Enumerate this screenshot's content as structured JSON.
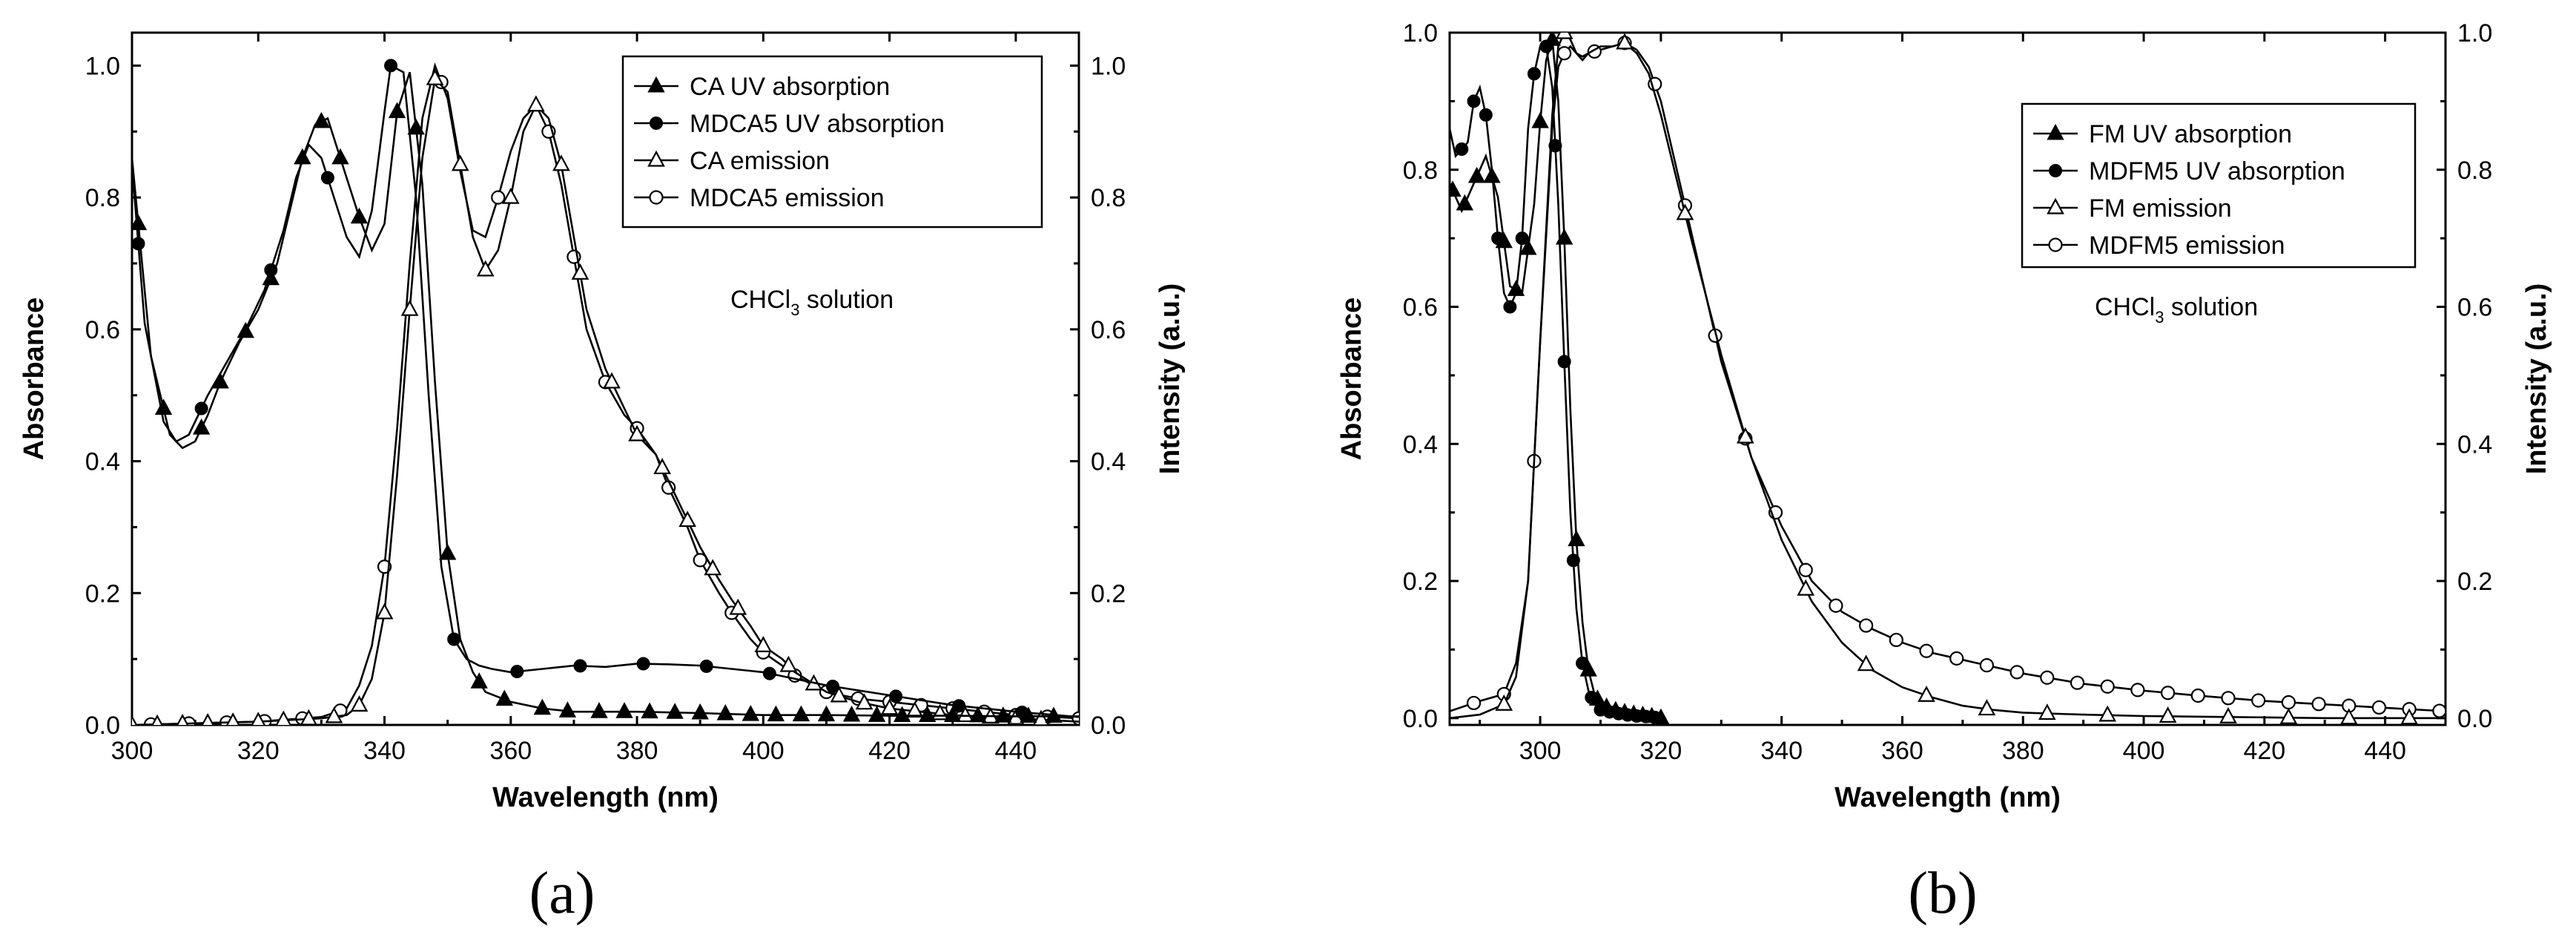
{
  "chart_data": [
    {
      "type": "line",
      "panel_label": "(a)",
      "xlabel": "Wavelength (nm)",
      "ylabel": "Absorbance",
      "y2label": "Intensity (a.u.)",
      "xlim": [
        300,
        450
      ],
      "ylim": [
        0,
        1.05
      ],
      "y2lim": [
        0,
        1.05
      ],
      "xticks": [
        300,
        320,
        340,
        360,
        380,
        400,
        420,
        440
      ],
      "yticks": [
        0.0,
        0.2,
        0.4,
        0.6,
        0.8,
        1.0
      ],
      "xtick_labels": [
        "300",
        "320",
        "340",
        "360",
        "380",
        "400",
        "420",
        "440"
      ],
      "ytick_labels": [
        "0.0",
        "0.2",
        "0.4",
        "0.6",
        "0.8",
        "1.0"
      ],
      "annotation": {
        "prefix": "CHCl",
        "subscript": "3",
        "suffix": " solution",
        "x": 385,
        "y": 0.65
      },
      "legend_position": "top-right",
      "series": [
        {
          "name": "CA UV absorption",
          "marker": "filled-triangle",
          "axis": "left",
          "x": [
            300,
            303,
            306,
            308,
            310,
            312,
            314,
            317,
            320,
            323,
            325,
            327,
            329,
            331,
            333,
            336,
            338,
            340,
            342,
            344,
            346,
            348,
            350,
            352,
            354,
            356,
            360,
            365,
            370,
            380,
            390,
            400,
            410,
            420,
            430,
            440,
            450
          ],
          "y": [
            0.86,
            0.56,
            0.44,
            0.42,
            0.43,
            0.47,
            0.52,
            0.58,
            0.63,
            0.7,
            0.78,
            0.86,
            0.91,
            0.92,
            0.86,
            0.77,
            0.72,
            0.76,
            0.93,
            0.99,
            0.82,
            0.52,
            0.26,
            0.13,
            0.08,
            0.05,
            0.035,
            0.025,
            0.02,
            0.02,
            0.018,
            0.015,
            0.015,
            0.014,
            0.014,
            0.013,
            0.013
          ],
          "markers_x": [
            301,
            305,
            311,
            314,
            318,
            322,
            327,
            330,
            333,
            336,
            342,
            345,
            350,
            355,
            359,
            365,
            369,
            374,
            378,
            382,
            386,
            390,
            394,
            398,
            402,
            406,
            410,
            414,
            418,
            422,
            426,
            430,
            434,
            438,
            442,
            446
          ]
        },
        {
          "name": "MDCA5 UV absorption",
          "marker": "filled-circle",
          "axis": "left",
          "x": [
            300,
            302,
            305,
            307,
            309,
            312,
            315,
            318,
            321,
            324,
            326,
            328,
            330,
            332,
            334,
            336,
            338,
            340,
            341,
            343,
            345,
            347,
            349,
            351,
            353,
            355,
            357,
            360,
            365,
            370,
            375,
            380,
            385,
            390,
            395,
            400,
            410,
            420,
            430,
            440,
            450
          ],
          "y": [
            0.85,
            0.61,
            0.46,
            0.43,
            0.44,
            0.5,
            0.55,
            0.6,
            0.66,
            0.75,
            0.83,
            0.88,
            0.86,
            0.8,
            0.74,
            0.71,
            0.78,
            0.93,
            1.0,
            0.99,
            0.8,
            0.5,
            0.24,
            0.13,
            0.1,
            0.09,
            0.085,
            0.08,
            0.085,
            0.09,
            0.088,
            0.093,
            0.092,
            0.09,
            0.085,
            0.08,
            0.06,
            0.045,
            0.03,
            0.02,
            0.012
          ],
          "markers_x": [
            301,
            311,
            322,
            331,
            341,
            351,
            361,
            371,
            381,
            391,
            401,
            411,
            421,
            431,
            441
          ]
        },
        {
          "name": "CA emission",
          "marker": "open-triangle",
          "axis": "right",
          "x": [
            300,
            320,
            330,
            334,
            336,
            338,
            340,
            342,
            344,
            346,
            348,
            350,
            352,
            354,
            356,
            358,
            360,
            362,
            364,
            366,
            368,
            370,
            372,
            375,
            378,
            380,
            383,
            385,
            388,
            390,
            393,
            395,
            398,
            400,
            403,
            405,
            410,
            415,
            420,
            430,
            440,
            450
          ],
          "y": [
            0.0,
            0.005,
            0.01,
            0.015,
            0.03,
            0.07,
            0.17,
            0.38,
            0.63,
            0.86,
            0.98,
            0.96,
            0.85,
            0.74,
            0.69,
            0.72,
            0.8,
            0.9,
            0.94,
            0.92,
            0.85,
            0.74,
            0.63,
            0.54,
            0.48,
            0.44,
            0.41,
            0.37,
            0.31,
            0.27,
            0.22,
            0.19,
            0.15,
            0.12,
            0.1,
            0.08,
            0.05,
            0.035,
            0.025,
            0.015,
            0.01,
            0.005
          ],
          "markers_x": [
            300,
            304,
            308,
            312,
            316,
            320,
            324,
            328,
            332,
            336,
            340,
            344,
            348,
            352,
            356,
            360,
            364,
            368,
            371,
            376,
            380,
            384,
            388,
            392,
            396,
            400,
            404,
            408,
            412,
            416,
            420,
            424,
            428,
            432,
            436,
            440,
            444
          ]
        },
        {
          "name": "MDCA5 emission",
          "marker": "open-circle",
          "axis": "right",
          "x": [
            300,
            320,
            330,
            334,
            336,
            338,
            340,
            342,
            344,
            346,
            348,
            350,
            352,
            354,
            356,
            358,
            360,
            362,
            364,
            366,
            368,
            370,
            372,
            375,
            378,
            380,
            383,
            385,
            388,
            390,
            393,
            395,
            398,
            400,
            403,
            405,
            410,
            415,
            420,
            430,
            440,
            450
          ],
          "y": [
            0.0,
            0.005,
            0.012,
            0.025,
            0.06,
            0.12,
            0.24,
            0.45,
            0.7,
            0.92,
            1.0,
            0.95,
            0.84,
            0.75,
            0.74,
            0.8,
            0.87,
            0.92,
            0.94,
            0.9,
            0.82,
            0.71,
            0.6,
            0.52,
            0.47,
            0.45,
            0.41,
            0.36,
            0.3,
            0.25,
            0.2,
            0.17,
            0.13,
            0.11,
            0.09,
            0.075,
            0.05,
            0.04,
            0.035,
            0.025,
            0.015,
            0.01
          ],
          "markers_x": [
            303,
            309,
            315,
            321,
            327,
            333,
            340,
            349,
            358,
            366,
            370,
            375,
            380,
            385,
            390,
            395,
            400,
            405,
            410,
            415,
            420,
            425,
            430,
            435,
            440,
            445,
            450
          ]
        }
      ]
    },
    {
      "type": "line",
      "panel_label": "(b)",
      "xlabel": "Wavelength (nm)",
      "ylabel": "Absorbance",
      "y2label": "Intensity (a.u.)",
      "xlim": [
        285,
        450
      ],
      "ylim": [
        -0.01,
        1.0
      ],
      "y2lim": [
        -0.01,
        1.0
      ],
      "xticks": [
        300,
        320,
        340,
        360,
        380,
        400,
        420,
        440
      ],
      "yticks": [
        0.0,
        0.2,
        0.4,
        0.6,
        0.8,
        1.0
      ],
      "xtick_labels": [
        "300",
        "320",
        "340",
        "360",
        "380",
        "400",
        "420",
        "440"
      ],
      "ytick_labels": [
        "0.0",
        "0.2",
        "0.4",
        "0.6",
        "0.8",
        "1.0"
      ],
      "annotation": {
        "prefix": "CHCl",
        "subscript": "3",
        "suffix": " solution",
        "x": 385,
        "y": 0.6
      },
      "legend_position": "top-right",
      "series": [
        {
          "name": "FM UV absorption",
          "marker": "filled-triangle",
          "axis": "left",
          "x": [
            285,
            287,
            289,
            291,
            293,
            295,
            297,
            299,
            300,
            301,
            302,
            303,
            304,
            305,
            306,
            307,
            308,
            309,
            310,
            312,
            314,
            316,
            318,
            320
          ],
          "y": [
            0.78,
            0.74,
            0.78,
            0.82,
            0.76,
            0.63,
            0.62,
            0.75,
            0.87,
            0.96,
            0.99,
            0.9,
            0.7,
            0.45,
            0.26,
            0.14,
            0.07,
            0.035,
            0.02,
            0.012,
            0.008,
            0.005,
            0.003,
            0.0
          ],
          "markers_x": [
            285.5,
            287.5,
            289.5,
            292,
            294,
            296,
            298,
            300,
            302,
            304,
            306,
            308,
            309.5,
            311,
            312.5,
            314,
            315.5,
            317,
            318.5,
            320
          ]
        },
        {
          "name": "MDFM5 UV absorption",
          "marker": "filled-circle",
          "axis": "left",
          "x": [
            285,
            286,
            288,
            289,
            290,
            291,
            292,
            293,
            294,
            295,
            296,
            297,
            298,
            299,
            300,
            301,
            302,
            303,
            304,
            305,
            306,
            307,
            308,
            309,
            310,
            312,
            314,
            316,
            318,
            320
          ],
          "y": [
            0.86,
            0.82,
            0.84,
            0.9,
            0.92,
            0.88,
            0.8,
            0.7,
            0.62,
            0.6,
            0.62,
            0.7,
            0.86,
            0.94,
            0.98,
            0.98,
            0.92,
            0.75,
            0.52,
            0.3,
            0.16,
            0.08,
            0.04,
            0.02,
            0.012,
            0.008,
            0.005,
            0.003,
            0.002,
            0.0
          ],
          "markers_x": [
            287,
            289,
            291,
            293,
            295,
            297,
            299,
            301,
            302.5,
            304,
            305.5,
            307,
            308.5,
            310,
            311.5,
            313,
            314.5,
            316,
            317.5,
            319
          ]
        },
        {
          "name": "FM emission",
          "marker": "open-triangle",
          "axis": "right",
          "x": [
            285,
            290,
            294,
            296,
            298,
            300,
            302,
            303,
            304,
            305,
            306,
            307,
            308,
            310,
            312,
            314,
            316,
            318,
            320,
            325,
            330,
            335,
            340,
            345,
            350,
            355,
            360,
            365,
            370,
            375,
            380,
            390,
            400,
            410,
            420,
            430,
            440,
            450
          ],
          "y": [
            0.0,
            0.005,
            0.02,
            0.06,
            0.2,
            0.55,
            0.88,
            0.98,
            1.0,
            0.99,
            0.97,
            0.96,
            0.97,
            0.98,
            0.98,
            0.985,
            0.97,
            0.94,
            0.88,
            0.7,
            0.53,
            0.38,
            0.26,
            0.17,
            0.11,
            0.07,
            0.045,
            0.03,
            0.018,
            0.012,
            0.008,
            0.005,
            0.003,
            0.002,
            0.001,
            0.0,
            0.0,
            0.0
          ],
          "markers_x": [
            294,
            304,
            314,
            324,
            334,
            344,
            354,
            364,
            374,
            384,
            394,
            404,
            414,
            424,
            434,
            444
          ]
        },
        {
          "name": "MDFM5 emission",
          "marker": "open-circle",
          "axis": "right",
          "x": [
            285,
            290,
            294,
            296,
            298,
            300,
            302,
            303,
            304,
            305,
            306,
            307,
            308,
            310,
            312,
            314,
            316,
            318,
            320,
            325,
            330,
            335,
            340,
            345,
            350,
            355,
            360,
            365,
            370,
            375,
            380,
            390,
            400,
            410,
            420,
            430,
            440,
            450
          ],
          "y": [
            0.01,
            0.025,
            0.035,
            0.08,
            0.2,
            0.55,
            0.86,
            0.95,
            0.97,
            0.98,
            0.97,
            0.965,
            0.97,
            0.975,
            0.98,
            0.985,
            0.975,
            0.95,
            0.9,
            0.71,
            0.52,
            0.38,
            0.28,
            0.2,
            0.155,
            0.13,
            0.11,
            0.095,
            0.085,
            0.075,
            0.065,
            0.05,
            0.04,
            0.032,
            0.025,
            0.02,
            0.015,
            0.01
          ],
          "markers_x": [
            289,
            294,
            299,
            304,
            309,
            314,
            319,
            324,
            329,
            334,
            339,
            344,
            349,
            354,
            359,
            364,
            369,
            374,
            379,
            384,
            389,
            394,
            399,
            404,
            409,
            414,
            419,
            424,
            429,
            434,
            439,
            444,
            449
          ]
        }
      ]
    }
  ]
}
